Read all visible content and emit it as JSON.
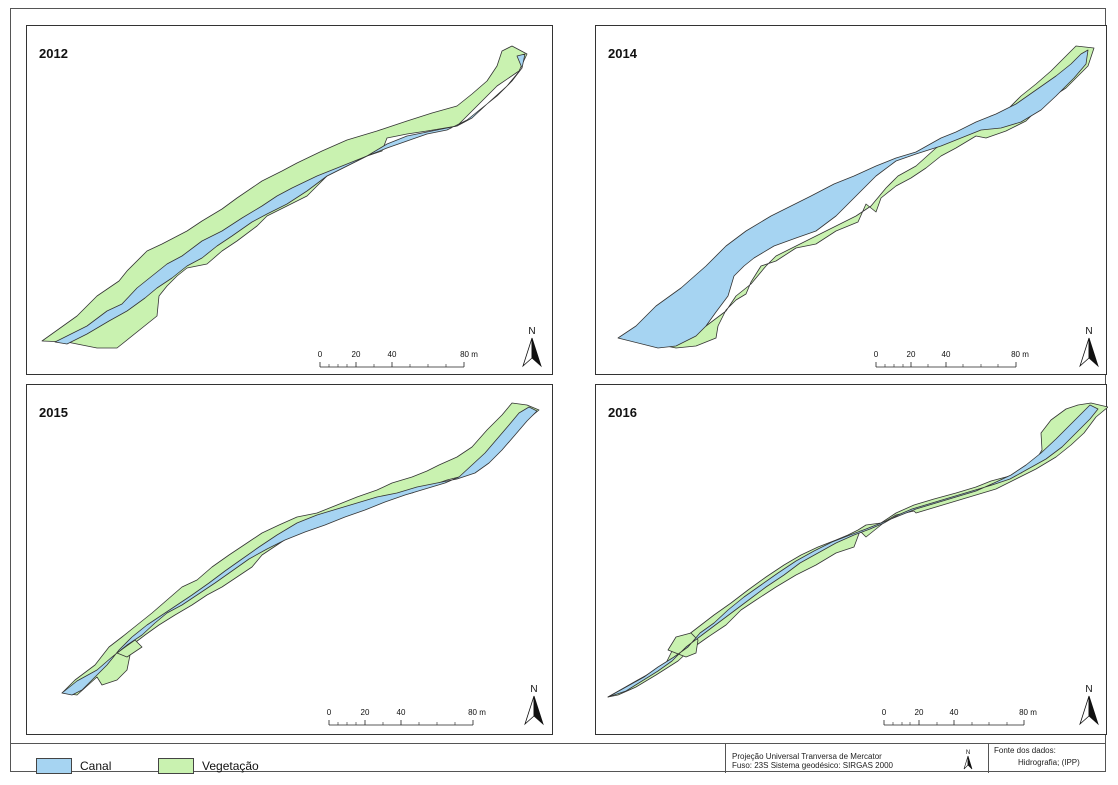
{
  "panels": [
    {
      "year": "2012"
    },
    {
      "year": "2014"
    },
    {
      "year": "2015"
    },
    {
      "year": "2016"
    }
  ],
  "scale_bar": {
    "ticks": [
      "0",
      "20",
      "40",
      "80 m"
    ]
  },
  "north_arrow": {
    "label": "N"
  },
  "legend": {
    "items": [
      {
        "label": "Canal",
        "color": "#a6d4f2"
      },
      {
        "label": "Vegetação",
        "color": "#c9f2b0"
      }
    ]
  },
  "projection": {
    "line1": "Projeção Universal Tranversa de Mercator",
    "line2": "Fuso: 23S  Sistema geodésico: SIRGAS 2000"
  },
  "source": {
    "line1": "Fonte dos dados:",
    "line2": "Hidrografia; (IPP)"
  }
}
